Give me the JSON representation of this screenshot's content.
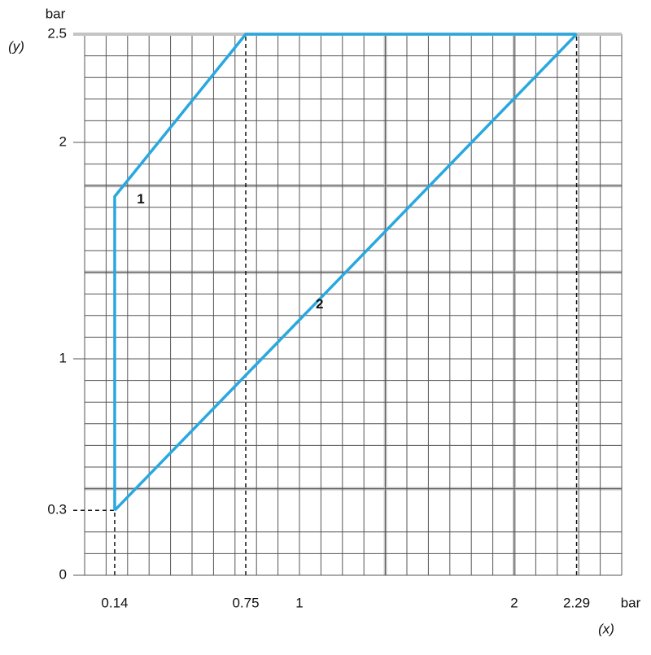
{
  "chart_data": {
    "type": "line",
    "x_label": "bar",
    "x_label_sub": "(x)",
    "y_label": "bar",
    "y_label_sub": "(y)",
    "xlim": [
      0,
      2.5
    ],
    "ylim": [
      0,
      2.5
    ],
    "xticks": [
      0.14,
      0.75,
      1,
      2,
      2.29
    ],
    "yticks": [
      0,
      0.3,
      1,
      2,
      2.5
    ],
    "x_gridlines": [
      0.1,
      0.2,
      0.3,
      0.4,
      0.5,
      0.6,
      0.7,
      0.8,
      0.9,
      1.1,
      1.2,
      1.3,
      1.4,
      1.5,
      1.6,
      1.7,
      1.8,
      1.9,
      2.1,
      2.2,
      2.3,
      2.4,
      2.5
    ],
    "y_gridlines": [
      0.1,
      0.2,
      0.4,
      0.5,
      0.6,
      0.7,
      0.8,
      0.9,
      1.1,
      1.2,
      1.3,
      1.4,
      1.5,
      1.6,
      1.7,
      1.8,
      1.9,
      2.1,
      2.2,
      2.3,
      2.4
    ],
    "x_major_gridlines": [
      1.4,
      2
    ],
    "y_major_gridlines": [
      0.4,
      1.4,
      1.8,
      2.5
    ],
    "series": [
      {
        "name": "1",
        "color": "#29a8e0",
        "x": [
          0.14,
          0.14,
          0.75,
          2.29
        ],
        "values": [
          0.3,
          1.75,
          2.5,
          2.5
        ]
      },
      {
        "name": "2",
        "color": "#29a8e0",
        "x": [
          0.14,
          2.29
        ],
        "values": [
          0.3,
          2.5
        ]
      }
    ]
  }
}
